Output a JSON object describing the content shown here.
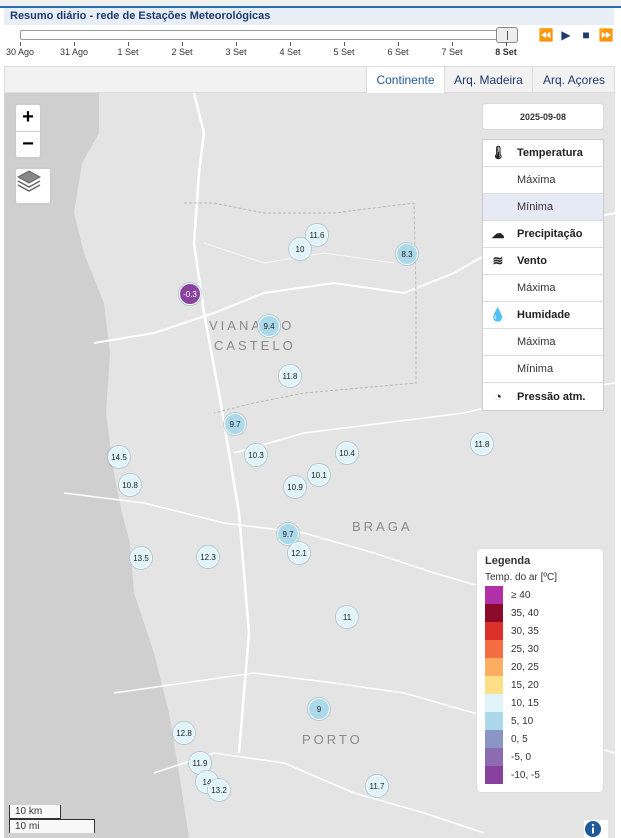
{
  "header": {
    "title": "Resumo diário - rede de Estações Meteorológicas"
  },
  "timeline": {
    "labels": [
      "30 Ago",
      "31 Ago",
      "1 Set",
      "2 Set",
      "3 Set",
      "4 Set",
      "5 Set",
      "6 Set",
      "7 Set",
      "8 Set"
    ],
    "selected": "8 Set",
    "controls": {
      "rewind": "⏪",
      "play": "▶",
      "stop": "■",
      "forward": "⏩"
    }
  },
  "tabs": [
    {
      "label": "Continente",
      "active": true
    },
    {
      "label": "Arq. Madeira",
      "active": false
    },
    {
      "label": "Arq. Açores",
      "active": false
    }
  ],
  "map": {
    "zoom_in": "+",
    "zoom_out": "−",
    "date": "2025-09-08",
    "variables": {
      "temperature": "Temperatura",
      "temp_max": "Máxima",
      "temp_min": "Mínima",
      "precipitation": "Precipitação",
      "wind": "Vento",
      "wind_max": "Máxima",
      "humidity": "Humidade",
      "hum_max": "Máxima",
      "hum_min": "Mínima",
      "pressure": "Pressão atm.",
      "selected": "temp_min"
    },
    "region_labels": {
      "viana_top": "VIANA DO",
      "viana_bottom": "CASTELO",
      "braga": "BRAGA",
      "porto": "PORTO"
    },
    "stations": [
      "11.6",
      "10",
      "8.3",
      "-0.3",
      "9.4",
      "11.8",
      "9.7",
      "14.5",
      "10.3",
      "10.4",
      "11.8",
      "10.1",
      "10.8",
      "10.9",
      "9.7",
      "12.1",
      "13.5",
      "12.3",
      "11",
      "9",
      "12.8",
      "11.9",
      "14",
      "13.2",
      "11.7"
    ],
    "scale": {
      "km": "10 km",
      "mi": "10 mi"
    }
  },
  "legend": {
    "title": "Legenda",
    "subtitle": "Temp. do ar [ºC]",
    "items": [
      {
        "label": "≥ 40",
        "color": "#b030a8"
      },
      {
        "label": "35, 40",
        "color": "#8c0a2a"
      },
      {
        "label": "30, 35",
        "color": "#d93027"
      },
      {
        "label": "25, 30",
        "color": "#f46d43"
      },
      {
        "label": "20, 25",
        "color": "#fdae61"
      },
      {
        "label": "15, 20",
        "color": "#fee08b"
      },
      {
        "label": "10, 15",
        "color": "#e0f3f8"
      },
      {
        "label": "5, 10",
        "color": "#abd9e9"
      },
      {
        "label": "0, 5",
        "color": "#8c96c6"
      },
      {
        "label": "-5, 0",
        "color": "#8c6bb1"
      },
      {
        "label": "-10, -5",
        "color": "#88419d"
      }
    ]
  }
}
